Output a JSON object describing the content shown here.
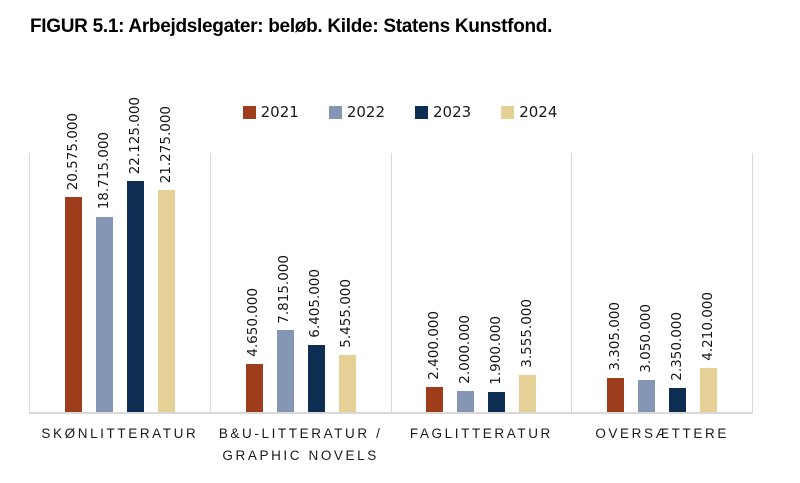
{
  "figure": {
    "title_prefix": "FIGUR 5.1:",
    "title_text": " Arbejdslegater: beløb. Kilde: Statens Kunstfond."
  },
  "chart_data": {
    "type": "bar",
    "title": "FIGUR 5.1: Arbejdslegater: beløb. Kilde: Statens Kunstfond.",
    "xlabel": "",
    "ylabel": "",
    "ylim": [
      0,
      25000000
    ],
    "grid": false,
    "legend_position": "top",
    "value_label_rotation": 90,
    "number_format": "da-DK thousands dot",
    "categories": [
      "SKØNLITTERATUR",
      "B&U-LITTERATUR / GRAPHIC NOVELS",
      "FAGLITTERATUR",
      "OVERSÆTTERE"
    ],
    "category_lines": [
      [
        "SKØNLITTERATUR"
      ],
      [
        "B&U-LITTERATUR /",
        "GRAPHIC NOVELS"
      ],
      [
        "FAGLITTERATUR"
      ],
      [
        "OVERSÆTTERE"
      ]
    ],
    "series": [
      {
        "name": "2021",
        "color": "#9E3D1C",
        "values": [
          20575000,
          4650000,
          2400000,
          3305000
        ]
      },
      {
        "name": "2022",
        "color": "#8496B4",
        "values": [
          18715000,
          7815000,
          2000000,
          3050000
        ]
      },
      {
        "name": "2023",
        "color": "#0E2D52",
        "values": [
          22125000,
          6405000,
          1900000,
          2350000
        ]
      },
      {
        "name": "2024",
        "color": "#E5D096",
        "values": [
          21275000,
          5455000,
          3555000,
          4210000
        ]
      }
    ]
  }
}
